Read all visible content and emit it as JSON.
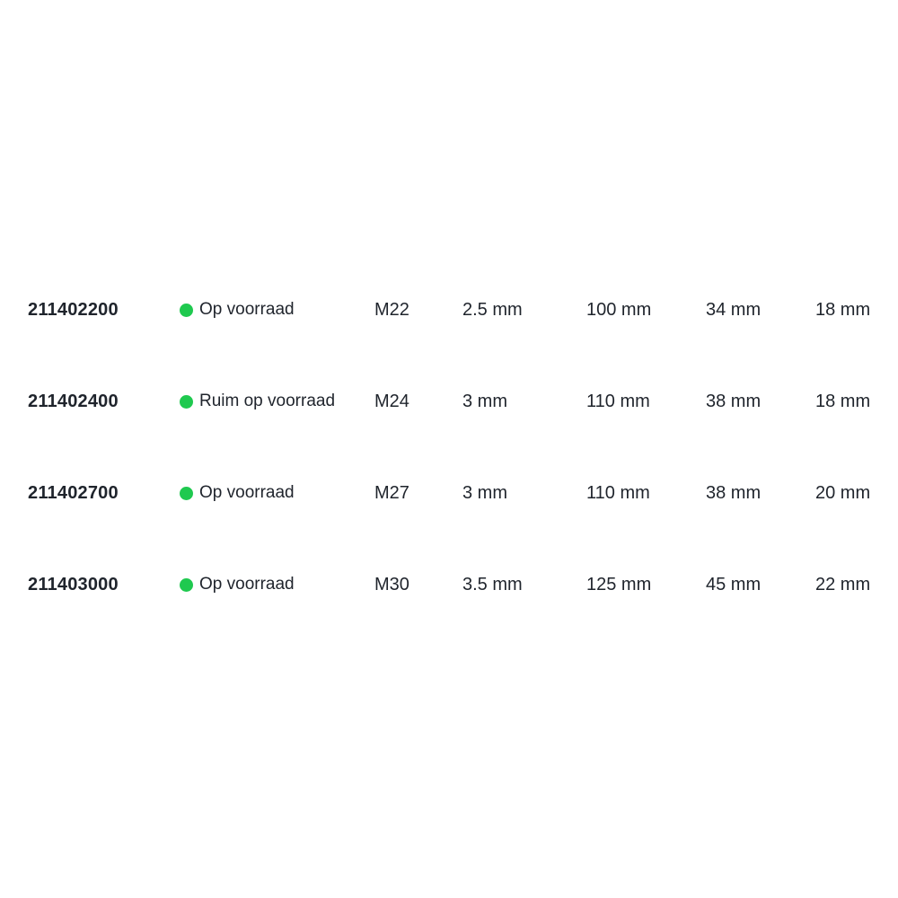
{
  "colors": {
    "stock_dot_green": "#1fc94f",
    "text_dark": "#1f242c",
    "background": "#ffffff"
  },
  "table": {
    "rows": [
      {
        "article_number": "211402200",
        "stock_status": "Op voorraad",
        "thread_size": "M22",
        "pitch": "2.5 mm",
        "length": "100 mm",
        "width": "34 mm",
        "height": "18 mm"
      },
      {
        "article_number": "211402400",
        "stock_status": "Ruim op voorraad",
        "thread_size": "M24",
        "pitch": "3 mm",
        "length": "110 mm",
        "width": "38 mm",
        "height": "18 mm"
      },
      {
        "article_number": "211402700",
        "stock_status": "Op voorraad",
        "thread_size": "M27",
        "pitch": "3 mm",
        "length": "110 mm",
        "width": "38 mm",
        "height": "20 mm"
      },
      {
        "article_number": "211403000",
        "stock_status": "Op voorraad",
        "thread_size": "M30",
        "pitch": "3.5 mm",
        "length": "125 mm",
        "width": "45 mm",
        "height": "22 mm"
      }
    ]
  }
}
